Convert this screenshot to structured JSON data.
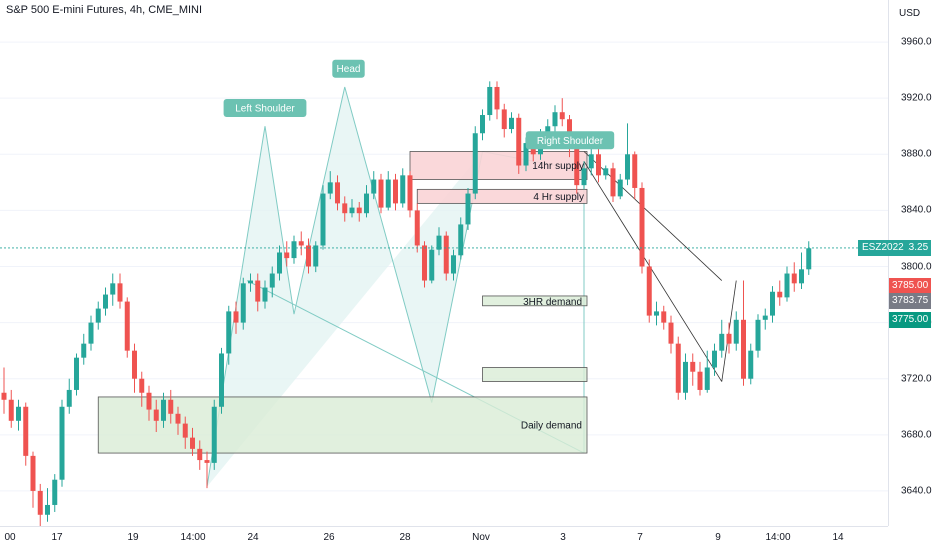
{
  "title": "S&P 500 E-mini Futures, 4h, CME_MINI",
  "currency": "USD",
  "colors": {
    "up": "#26a69a",
    "down": "#ef5350",
    "pattern_fill": "#e0f2f1",
    "pattern_line": "#80cbc4",
    "supply_fill": "#f9d4d6",
    "demand_fill": "#d9ecd6",
    "label_bg": "#6cc2b2"
  },
  "price_labels": {
    "current_symbol": "ESZ2022",
    "current": "3813.25",
    "red": "3785.00",
    "gray": "3783.75",
    "green": "3775.00"
  },
  "annotations": {
    "left_shoulder": "Left Shoulder",
    "head": "Head",
    "right_shoulder": "Right Shoulder",
    "supply_14hr": "14hr supply",
    "supply_4hr": "4 Hr supply",
    "demand_3hr": "3HR demand",
    "demand_daily": "Daily demand"
  },
  "chart_data": {
    "type": "candlestick",
    "title": "S&P 500 E-mini Futures, 4h, CME_MINI",
    "ylim": [
      3615,
      3990
    ],
    "y_ticks": [
      "3640.00",
      "3680.00",
      "3720.00",
      "3760.00",
      "3800.00",
      "3840.00",
      "3880.00",
      "3920.00",
      "3960.00"
    ],
    "x_ticks": [
      "00",
      "17",
      "19",
      "14:00",
      "24",
      "26",
      "28",
      "Nov",
      "3",
      "7",
      "9",
      "14:00",
      "14"
    ],
    "current_price": 3813.25,
    "candles": [
      [
        3710,
        3705,
        3728,
        3695
      ],
      [
        3705,
        3690,
        3712,
        3685
      ],
      [
        3690,
        3700,
        3705,
        3683
      ],
      [
        3700,
        3665,
        3703,
        3658
      ],
      [
        3665,
        3640,
        3668,
        3628
      ],
      [
        3640,
        3623,
        3645,
        3615
      ],
      [
        3623,
        3630,
        3642,
        3618
      ],
      [
        3630,
        3648,
        3652,
        3625
      ],
      [
        3648,
        3700,
        3705,
        3643
      ],
      [
        3700,
        3712,
        3720,
        3695
      ],
      [
        3712,
        3735,
        3738,
        3708
      ],
      [
        3735,
        3745,
        3752,
        3730
      ],
      [
        3745,
        3760,
        3765,
        3740
      ],
      [
        3760,
        3770,
        3775,
        3755
      ],
      [
        3770,
        3780,
        3785,
        3765
      ],
      [
        3780,
        3788,
        3795,
        3772
      ],
      [
        3788,
        3775,
        3795,
        3770
      ],
      [
        3775,
        3740,
        3778,
        3735
      ],
      [
        3740,
        3720,
        3745,
        3710
      ],
      [
        3720,
        3710,
        3725,
        3700
      ],
      [
        3710,
        3698,
        3715,
        3690
      ],
      [
        3698,
        3690,
        3705,
        3682
      ],
      [
        3690,
        3705,
        3710,
        3685
      ],
      [
        3705,
        3695,
        3712,
        3688
      ],
      [
        3695,
        3688,
        3700,
        3680
      ],
      [
        3688,
        3678,
        3693,
        3670
      ],
      [
        3678,
        3670,
        3685,
        3665
      ],
      [
        3670,
        3662,
        3676,
        3655
      ],
      [
        3662,
        3660,
        3668,
        3642
      ],
      [
        3660,
        3700,
        3705,
        3655
      ],
      [
        3700,
        3738,
        3742,
        3695
      ],
      [
        3738,
        3768,
        3772,
        3730
      ],
      [
        3768,
        3760,
        3775,
        3752
      ],
      [
        3760,
        3788,
        3792,
        3755
      ],
      [
        3788,
        3790,
        3795,
        3782
      ],
      [
        3790,
        3775,
        3795,
        3768
      ],
      [
        3775,
        3785,
        3790,
        3770
      ],
      [
        3785,
        3795,
        3800,
        3778
      ],
      [
        3795,
        3810,
        3815,
        3790
      ],
      [
        3810,
        3806,
        3818,
        3800
      ],
      [
        3806,
        3818,
        3822,
        3802
      ],
      [
        3818,
        3815,
        3825,
        3808
      ],
      [
        3815,
        3800,
        3820,
        3795
      ],
      [
        3800,
        3815,
        3818,
        3796
      ],
      [
        3815,
        3852,
        3858,
        3812
      ],
      [
        3852,
        3860,
        3868,
        3848
      ],
      [
        3860,
        3845,
        3865,
        3840
      ],
      [
        3845,
        3838,
        3850,
        3832
      ],
      [
        3838,
        3842,
        3848,
        3835
      ],
      [
        3842,
        3838,
        3846,
        3832
      ],
      [
        3838,
        3852,
        3858,
        3835
      ],
      [
        3852,
        3862,
        3868,
        3848
      ],
      [
        3862,
        3842,
        3866,
        3838
      ],
      [
        3842,
        3862,
        3868,
        3840
      ],
      [
        3862,
        3845,
        3866,
        3840
      ],
      [
        3845,
        3865,
        3870,
        3842
      ],
      [
        3865,
        3840,
        3868,
        3835
      ],
      [
        3840,
        3815,
        3845,
        3810
      ],
      [
        3815,
        3790,
        3818,
        3785
      ],
      [
        3790,
        3812,
        3815,
        3788
      ],
      [
        3812,
        3822,
        3828,
        3808
      ],
      [
        3822,
        3795,
        3825,
        3790
      ],
      [
        3795,
        3808,
        3812,
        3790
      ],
      [
        3808,
        3830,
        3835,
        3805
      ],
      [
        3830,
        3852,
        3856,
        3826
      ],
      [
        3852,
        3895,
        3900,
        3848
      ],
      [
        3895,
        3908,
        3912,
        3890
      ],
      [
        3908,
        3928,
        3932,
        3904
      ],
      [
        3928,
        3912,
        3932,
        3905
      ],
      [
        3912,
        3898,
        3916,
        3892
      ],
      [
        3898,
        3906,
        3910,
        3895
      ],
      [
        3906,
        3872,
        3909,
        3866
      ],
      [
        3872,
        3888,
        3892,
        3868
      ],
      [
        3888,
        3880,
        3895,
        3875
      ],
      [
        3880,
        3895,
        3898,
        3876
      ],
      [
        3895,
        3900,
        3905,
        3890
      ],
      [
        3900,
        3910,
        3915,
        3895
      ],
      [
        3910,
        3905,
        3920,
        3900
      ],
      [
        3905,
        3885,
        3908,
        3878
      ],
      [
        3885,
        3858,
        3888,
        3852
      ],
      [
        3858,
        3870,
        3875,
        3855
      ],
      [
        3870,
        3880,
        3885,
        3865
      ],
      [
        3880,
        3865,
        3890,
        3860
      ],
      [
        3865,
        3870,
        3872,
        3862
      ],
      [
        3870,
        3850,
        3874,
        3846
      ],
      [
        3850,
        3862,
        3866,
        3848
      ],
      [
        3862,
        3880,
        3902,
        3858
      ],
      [
        3880,
        3856,
        3882,
        3848
      ],
      [
        3856,
        3800,
        3860,
        3795
      ],
      [
        3800,
        3765,
        3805,
        3760
      ],
      [
        3765,
        3768,
        3775,
        3758
      ],
      [
        3768,
        3760,
        3772,
        3755
      ],
      [
        3760,
        3745,
        3765,
        3738
      ],
      [
        3745,
        3710,
        3750,
        3705
      ],
      [
        3710,
        3732,
        3738,
        3705
      ],
      [
        3732,
        3725,
        3738,
        3715
      ],
      [
        3725,
        3712,
        3732,
        3708
      ],
      [
        3712,
        3728,
        3740,
        3710
      ],
      [
        3728,
        3740,
        3745,
        3722
      ],
      [
        3740,
        3752,
        3762,
        3735
      ],
      [
        3752,
        3745,
        3760,
        3738
      ],
      [
        3745,
        3762,
        3768,
        3740
      ],
      [
        3762,
        3720,
        3790,
        3715
      ],
      [
        3720,
        3740,
        3745,
        3716
      ],
      [
        3740,
        3762,
        3766,
        3735
      ],
      [
        3762,
        3765,
        3770,
        3755
      ],
      [
        3765,
        3782,
        3786,
        3760
      ],
      [
        3782,
        3778,
        3790,
        3772
      ],
      [
        3778,
        3795,
        3800,
        3775
      ],
      [
        3795,
        3788,
        3803,
        3782
      ],
      [
        3788,
        3798,
        3810,
        3784
      ],
      [
        3798,
        3813,
        3818,
        3794
      ]
    ],
    "head_and_shoulders": {
      "points": [
        [
          28,
          3643
        ],
        [
          36,
          3900
        ],
        [
          40,
          3766
        ],
        [
          47,
          3928
        ],
        [
          59,
          3703
        ],
        [
          66,
          3882
        ]
      ],
      "labels": [
        "Left Shoulder",
        "Head",
        "Right Shoulder"
      ]
    },
    "zones": [
      {
        "label": "14hr supply",
        "from_index": 56,
        "to_index": 80,
        "top": 3882,
        "bottom": 3862,
        "kind": "supply"
      },
      {
        "label": "4 Hr supply",
        "from_index": 57,
        "to_index": 80,
        "top": 3855,
        "bottom": 3845,
        "kind": "supply"
      },
      {
        "label": "3HR demand",
        "from_index": 66,
        "to_index": 80,
        "top": 3779,
        "bottom": 3772,
        "kind": "demand"
      },
      {
        "label": "",
        "from_index": 66,
        "to_index": 80,
        "top": 3728,
        "bottom": 3718,
        "kind": "demand"
      },
      {
        "label": "Daily demand",
        "from_index": 13,
        "to_index": 80,
        "top": 3707,
        "bottom": 3667,
        "kind": "demand"
      }
    ]
  }
}
